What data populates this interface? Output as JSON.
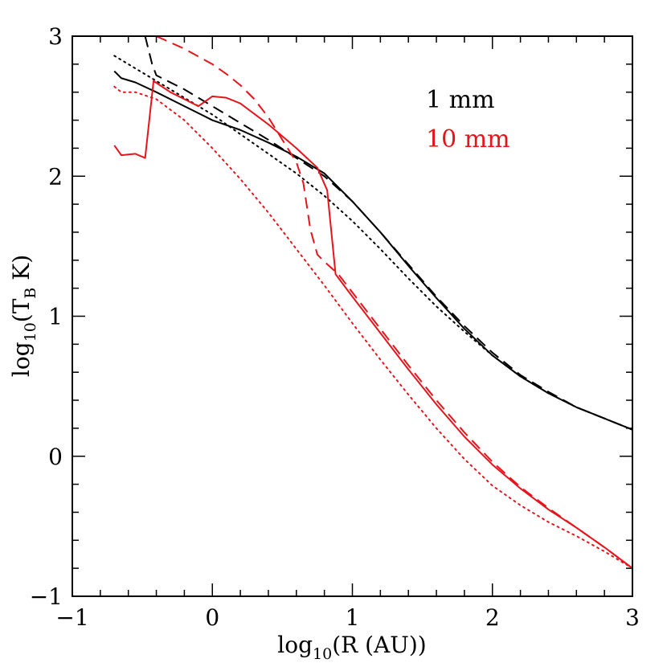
{
  "chart_data": {
    "type": "line",
    "xlabel": {
      "prefix": "log",
      "prefix_sub": "10",
      "rest": "(R (AU))"
    },
    "ylabel": {
      "prefix": "log",
      "prefix_sub": "10",
      "open": "(T",
      "t_sub": "B",
      "rest": " K)"
    },
    "xlim": [
      -1,
      3
    ],
    "ylim": [
      -1,
      3
    ],
    "x_ticks": [
      -1,
      0,
      1,
      2,
      3
    ],
    "y_ticks": [
      -1,
      0,
      1,
      2,
      3
    ],
    "x_tick_labels": [
      "−1",
      "0",
      "1",
      "2",
      "3"
    ],
    "y_tick_labels": [
      "−1",
      "0",
      "1",
      "2",
      "3"
    ],
    "legend": [
      {
        "label": "1 mm",
        "color": "#000000"
      },
      {
        "label": "10 mm",
        "color": "#e8141b"
      }
    ],
    "colors": {
      "black": "#000000",
      "red": "#e8141b"
    },
    "series": [
      {
        "group": "1 mm",
        "color": "#000000",
        "style": "solid",
        "points": [
          [
            -0.7,
            2.75
          ],
          [
            -0.65,
            2.7
          ],
          [
            -0.55,
            2.67
          ],
          [
            -0.4,
            2.6
          ],
          [
            -0.2,
            2.5
          ],
          [
            0,
            2.4
          ],
          [
            0.2,
            2.33
          ],
          [
            0.4,
            2.24
          ],
          [
            0.6,
            2.14
          ],
          [
            0.8,
            2.02
          ],
          [
            1.0,
            1.82
          ],
          [
            1.2,
            1.6
          ],
          [
            1.4,
            1.36
          ],
          [
            1.6,
            1.13
          ],
          [
            1.8,
            0.91
          ],
          [
            2.0,
            0.72
          ],
          [
            2.2,
            0.57
          ],
          [
            2.4,
            0.45
          ],
          [
            2.6,
            0.35
          ],
          [
            2.8,
            0.27
          ],
          [
            3.0,
            0.19
          ]
        ]
      },
      {
        "group": "1 mm",
        "color": "#000000",
        "style": "dashed",
        "points": [
          [
            -0.48,
            3.0
          ],
          [
            -0.43,
            2.8
          ],
          [
            -0.4,
            2.72
          ],
          [
            -0.2,
            2.62
          ],
          [
            0,
            2.5
          ],
          [
            0.2,
            2.38
          ],
          [
            0.4,
            2.26
          ],
          [
            0.6,
            2.13
          ],
          [
            0.8,
            2.0
          ],
          [
            1.0,
            1.82
          ],
          [
            1.2,
            1.6
          ],
          [
            1.4,
            1.37
          ],
          [
            1.6,
            1.14
          ],
          [
            1.8,
            0.93
          ],
          [
            2.0,
            0.74
          ],
          [
            2.2,
            0.58
          ],
          [
            2.4,
            0.46
          ],
          [
            2.6,
            0.35
          ],
          [
            2.8,
            0.27
          ],
          [
            3.0,
            0.19
          ]
        ]
      },
      {
        "group": "1 mm",
        "color": "#000000",
        "style": "dotted",
        "points": [
          [
            -0.7,
            2.86
          ],
          [
            -0.6,
            2.8
          ],
          [
            -0.4,
            2.68
          ],
          [
            -0.2,
            2.56
          ],
          [
            0,
            2.44
          ],
          [
            0.2,
            2.3
          ],
          [
            0.4,
            2.16
          ],
          [
            0.6,
            2.02
          ],
          [
            0.8,
            1.86
          ],
          [
            1.0,
            1.68
          ],
          [
            1.2,
            1.48
          ],
          [
            1.4,
            1.27
          ],
          [
            1.6,
            1.07
          ],
          [
            1.8,
            0.89
          ],
          [
            2.0,
            0.72
          ],
          [
            2.2,
            0.57
          ],
          [
            2.4,
            0.45
          ],
          [
            2.6,
            0.35
          ],
          [
            2.8,
            0.27
          ],
          [
            3.0,
            0.19
          ]
        ]
      },
      {
        "group": "10 mm",
        "color": "#e8141b",
        "style": "solid",
        "points": [
          [
            -0.7,
            2.22
          ],
          [
            -0.65,
            2.15
          ],
          [
            -0.55,
            2.16
          ],
          [
            -0.48,
            2.13
          ],
          [
            -0.42,
            2.68
          ],
          [
            -0.3,
            2.6
          ],
          [
            -0.2,
            2.55
          ],
          [
            -0.1,
            2.5
          ],
          [
            0,
            2.57
          ],
          [
            0.1,
            2.56
          ],
          [
            0.2,
            2.52
          ],
          [
            0.4,
            2.37
          ],
          [
            0.6,
            2.2
          ],
          [
            0.75,
            2.06
          ],
          [
            0.82,
            1.9
          ],
          [
            0.88,
            1.3
          ],
          [
            1.0,
            1.14
          ],
          [
            1.2,
            0.88
          ],
          [
            1.4,
            0.62
          ],
          [
            1.6,
            0.37
          ],
          [
            1.8,
            0.14
          ],
          [
            2.0,
            -0.06
          ],
          [
            2.2,
            -0.23
          ],
          [
            2.4,
            -0.38
          ],
          [
            2.6,
            -0.51
          ],
          [
            2.8,
            -0.65
          ],
          [
            3.0,
            -0.8
          ]
        ]
      },
      {
        "group": "10 mm",
        "color": "#e8141b",
        "style": "dashed",
        "points": [
          [
            -0.4,
            3.0
          ],
          [
            -0.2,
            2.91
          ],
          [
            0,
            2.8
          ],
          [
            0.1,
            2.73
          ],
          [
            0.2,
            2.65
          ],
          [
            0.3,
            2.55
          ],
          [
            0.4,
            2.42
          ],
          [
            0.5,
            2.26
          ],
          [
            0.6,
            2.1
          ],
          [
            0.65,
            1.95
          ],
          [
            0.7,
            1.62
          ],
          [
            0.75,
            1.44
          ],
          [
            0.8,
            1.39
          ],
          [
            0.9,
            1.3
          ],
          [
            1.0,
            1.17
          ],
          [
            1.2,
            0.91
          ],
          [
            1.4,
            0.65
          ],
          [
            1.6,
            0.4
          ],
          [
            1.8,
            0.17
          ],
          [
            2.0,
            -0.04
          ],
          [
            2.2,
            -0.22
          ],
          [
            2.4,
            -0.37
          ],
          [
            2.6,
            -0.51
          ],
          [
            2.8,
            -0.65
          ],
          [
            3.0,
            -0.8
          ]
        ]
      },
      {
        "group": "10 mm",
        "color": "#e8141b",
        "style": "dotted",
        "points": [
          [
            -0.7,
            2.64
          ],
          [
            -0.65,
            2.6
          ],
          [
            -0.55,
            2.6
          ],
          [
            -0.4,
            2.55
          ],
          [
            -0.2,
            2.4
          ],
          [
            0,
            2.2
          ],
          [
            0.2,
            1.98
          ],
          [
            0.4,
            1.74
          ],
          [
            0.6,
            1.48
          ],
          [
            0.8,
            1.22
          ],
          [
            1.0,
            0.95
          ],
          [
            1.2,
            0.69
          ],
          [
            1.4,
            0.44
          ],
          [
            1.6,
            0.2
          ],
          [
            1.8,
            -0.02
          ],
          [
            2.0,
            -0.21
          ],
          [
            2.2,
            -0.35
          ],
          [
            2.4,
            -0.47
          ],
          [
            2.6,
            -0.57
          ],
          [
            2.8,
            -0.68
          ],
          [
            3.0,
            -0.8
          ]
        ]
      }
    ]
  }
}
